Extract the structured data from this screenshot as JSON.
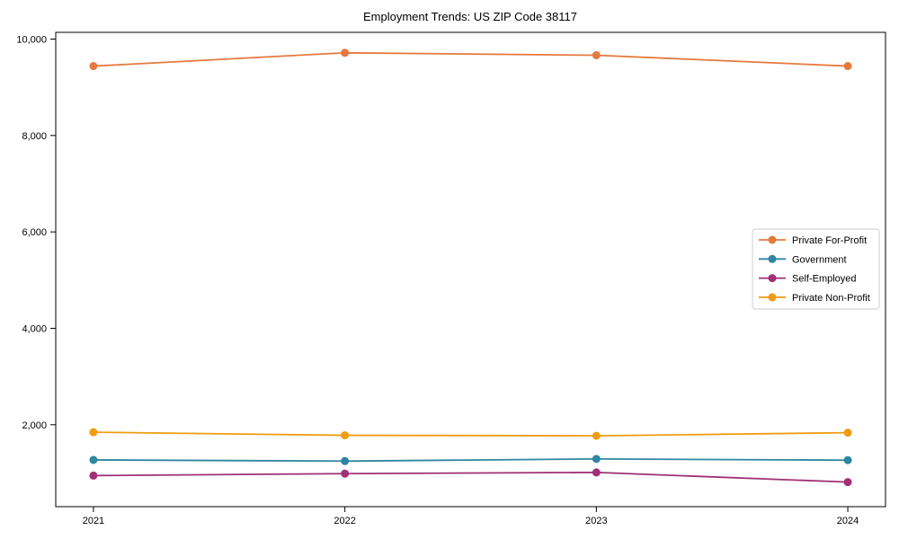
{
  "chart_data": {
    "type": "line",
    "title": "Employment Trends: US ZIP Code 38117",
    "xlabel": "",
    "ylabel": "",
    "categories": [
      "2021",
      "2022",
      "2023",
      "2024"
    ],
    "series": [
      {
        "name": "Private For-Profit",
        "color": "#e5793e",
        "values": [
          9440,
          9715,
          9665,
          9440
        ]
      },
      {
        "name": "Government",
        "color": "#2e86a0",
        "values": [
          1270,
          1245,
          1290,
          1265
        ]
      },
      {
        "name": "Self-Employed",
        "color": "#a03077",
        "values": [
          945,
          985,
          1010,
          810
        ]
      },
      {
        "name": "Private Non-Profit",
        "color": "#f09c12",
        "values": [
          1845,
          1780,
          1770,
          1835
        ]
      }
    ],
    "ylim": [
      300,
      10140
    ],
    "yticks": [
      2000,
      4000,
      6000,
      8000,
      10000
    ],
    "ytick_labels": [
      "2,000",
      "4,000",
      "6,000",
      "8,000",
      "10,000"
    ],
    "grid": false,
    "legend_position": "center-right",
    "marker": "circle",
    "axis_color": "#000000",
    "legend_border_color": "#cccccc",
    "background_color": "#ffffff"
  }
}
